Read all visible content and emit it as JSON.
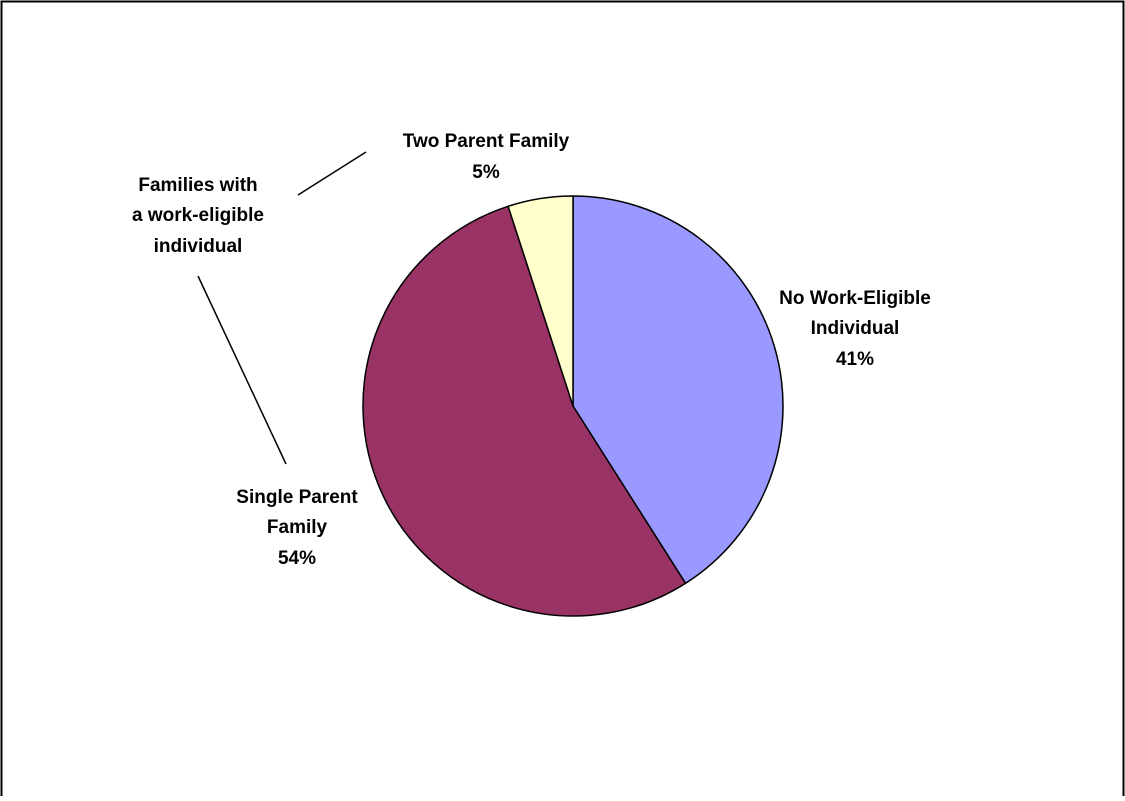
{
  "chart_data": {
    "type": "pie",
    "title": "",
    "slices": [
      {
        "label_lines": [
          "No Work-Eligible",
          "Individual"
        ],
        "value": 41,
        "value_label": "41%",
        "color": "#9999ff"
      },
      {
        "label_lines": [
          "Single Parent",
          "Family"
        ],
        "value": 54,
        "value_label": "54%",
        "color": "#993366"
      },
      {
        "label_lines": [
          "Two Parent Family"
        ],
        "value": 5,
        "value_label": "5%",
        "color": "#ffffcc"
      }
    ],
    "start_angle_deg": 0,
    "direction": "clockwise",
    "annotation": {
      "lines": [
        "Families with",
        "a work-eligible",
        "individual"
      ],
      "points_to": [
        "Two Parent Family",
        "Single Parent Family"
      ]
    },
    "legend": "none"
  }
}
